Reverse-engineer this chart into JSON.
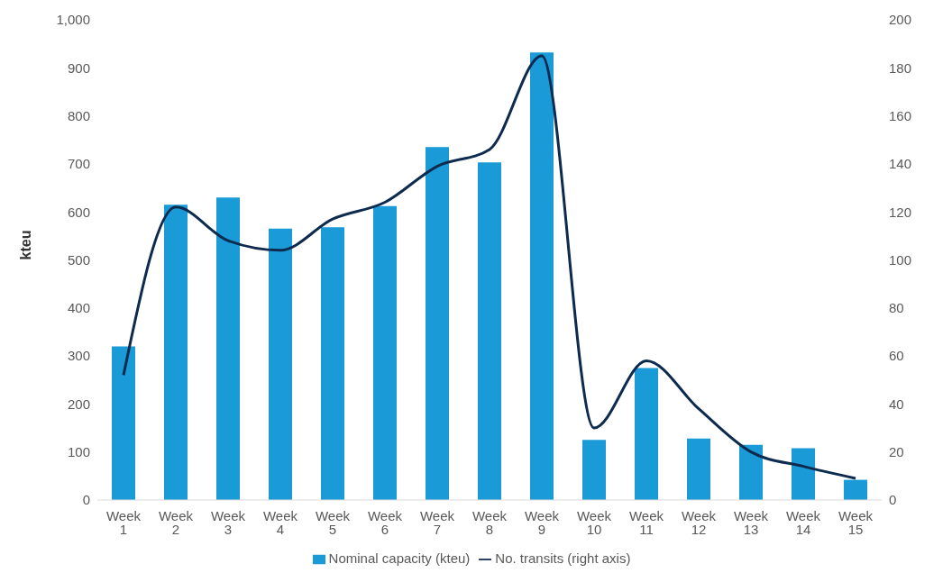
{
  "chart_data": {
    "type": "bar",
    "ylabel": "kteu",
    "categories": [
      "Week 1",
      "Week 2",
      "Week 3",
      "Week 4",
      "Week 5",
      "Week 6",
      "Week 7",
      "Week 8",
      "Week 9",
      "Week 10",
      "Week 11",
      "Week 12",
      "Week 13",
      "Week 14",
      "Week 15"
    ],
    "series": [
      {
        "name": "Nominal capacity (kteu)",
        "color": "#1a9ad6",
        "values": [
          320,
          615,
          630,
          565,
          568,
          612,
          735,
          703,
          932,
          125,
          275,
          128,
          115,
          108,
          42
        ]
      },
      {
        "name": "No. transits (right axis)",
        "type": "line",
        "axis": "y2",
        "color": "#0d2a4f",
        "values": [
          52,
          122,
          108,
          104,
          117,
          124,
          139,
          146,
          185,
          30,
          58,
          38,
          20,
          14,
          9
        ]
      }
    ],
    "ylim": [
      0,
      1000
    ],
    "yticks": [
      0,
      100,
      200,
      300,
      400,
      500,
      600,
      700,
      800,
      900,
      {
        "value": 1000,
        "label": "1,000"
      }
    ],
    "y2lim": [
      0,
      200
    ],
    "y2ticks": [
      0,
      20,
      40,
      60,
      80,
      100,
      120,
      140,
      160,
      180,
      200
    ],
    "grid": false,
    "legend": "bottom",
    "marker": "none",
    "line_style": "solid"
  }
}
